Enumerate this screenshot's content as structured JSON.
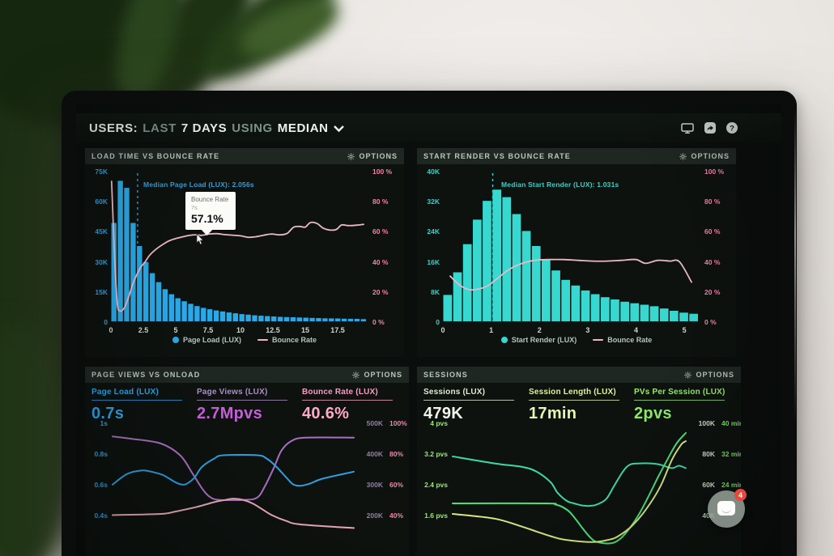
{
  "header": {
    "parts": [
      {
        "text": "USERS:",
        "dim": false
      },
      {
        "text": "LAST",
        "dim": true
      },
      {
        "text": "7 DAYS",
        "dim": false
      },
      {
        "text": "USING",
        "dim": true
      },
      {
        "text": "MEDIAN",
        "dim": false
      }
    ],
    "icons": [
      "display-icon",
      "share-icon",
      "help-icon"
    ]
  },
  "labels": {
    "options": "OPTIONS"
  },
  "chart_data": [
    {
      "type": "bar-line-combo",
      "title": "LOAD TIME VS BOUNCE RATE",
      "x_max": 19.75,
      "x_ticks": [
        "0",
        "2.5",
        "5",
        "7.5",
        "10",
        "12.5",
        "15",
        "17.5"
      ],
      "left_axis": {
        "ticks": [
          "75K",
          "60K",
          "45K",
          "30K",
          "15K",
          "0"
        ],
        "color": "#2f9fdf"
      },
      "right_axis": {
        "ticks": [
          "100 %",
          "80 %",
          "60 %",
          "40 %",
          "20 %",
          "0 %"
        ],
        "color": "#ee85ad"
      },
      "bars": {
        "name": "Page Load (LUX)",
        "color": "#29a9e8",
        "unit": "K",
        "ymax": 75,
        "values": [
          49,
          70,
          66.5,
          49,
          37.5,
          29.5,
          24,
          19.5,
          16,
          13.5,
          11.5,
          10,
          8.7,
          7.6,
          6.7,
          6,
          5.4,
          4.9,
          4.4,
          4,
          3.6,
          3.3,
          3,
          2.8,
          2.6,
          2.4,
          2.2,
          2.1,
          2,
          1.9,
          1.8,
          1.7,
          1.6,
          1.5,
          1.45,
          1.4,
          1.3,
          1.25,
          1.2,
          1.1
        ]
      },
      "line": {
        "name": "Bounce Rate",
        "color": "#eab9c6",
        "points": [
          [
            0.05,
            93
          ],
          [
            0.3,
            40
          ],
          [
            0.5,
            11
          ],
          [
            0.7,
            7
          ],
          [
            0.9,
            7.5
          ],
          [
            1.1,
            10
          ],
          [
            1.4,
            17
          ],
          [
            1.7,
            25
          ],
          [
            2.0,
            31
          ],
          [
            2.3,
            36
          ],
          [
            2.6,
            39
          ],
          [
            3.0,
            44
          ],
          [
            3.5,
            48
          ],
          [
            4.0,
            51
          ],
          [
            4.5,
            53.5
          ],
          [
            5.0,
            55
          ],
          [
            5.5,
            56
          ],
          [
            6.0,
            57
          ],
          [
            6.5,
            57.5
          ],
          [
            7.0,
            57.1
          ],
          [
            7.6,
            58
          ],
          [
            8.2,
            58.2
          ],
          [
            8.8,
            57.6
          ],
          [
            9.4,
            57.2
          ],
          [
            10.0,
            56.8
          ],
          [
            10.6,
            55.8
          ],
          [
            11.2,
            56.2
          ],
          [
            11.8,
            57.2
          ],
          [
            12.4,
            58
          ],
          [
            13.0,
            57.4
          ],
          [
            13.6,
            58.4
          ],
          [
            14.1,
            62.5
          ],
          [
            14.6,
            63
          ],
          [
            15.0,
            62.6
          ],
          [
            15.4,
            65.6
          ],
          [
            15.9,
            65
          ],
          [
            16.4,
            61.8
          ],
          [
            16.9,
            60.6
          ],
          [
            17.4,
            61
          ],
          [
            17.8,
            64
          ],
          [
            18.3,
            63.6
          ],
          [
            18.9,
            63.8
          ],
          [
            19.5,
            64.4
          ]
        ]
      },
      "median": {
        "label": "Median Page Load (LUX): 2.056s",
        "x": 2.056,
        "color": "#2f9fdf"
      },
      "tooltip": {
        "title": "Bounce Rate",
        "sub": "7s",
        "value": "57.1%"
      }
    },
    {
      "type": "bar-line-combo",
      "title": "START RENDER VS BOUNCE RATE",
      "x_max": 5.3,
      "x_ticks": [
        "0",
        "1",
        "2",
        "3",
        "4",
        "5"
      ],
      "left_axis": {
        "ticks": [
          "40K",
          "32K",
          "24K",
          "16K",
          "8K",
          "0"
        ],
        "color": "#35d2ca"
      },
      "right_axis": {
        "ticks": [
          "100 %",
          "80 %",
          "60 %",
          "40 %",
          "20 %",
          "0 %"
        ],
        "color": "#ee85ad"
      },
      "bars": {
        "name": "Start Render (LUX)",
        "color": "#36d8d0",
        "unit": "K",
        "ymax": 40,
        "values": [
          7,
          13,
          20.5,
          27,
          32,
          35,
          33,
          28.5,
          24,
          20,
          16.5,
          13.5,
          11,
          9.5,
          8.2,
          7.2,
          6.4,
          5.8,
          5.2,
          4.8,
          4.4,
          4,
          3.4,
          2.8,
          2.3,
          2
        ]
      },
      "line": {
        "name": "Bounce Rate",
        "color": "#eab9c6",
        "points": [
          [
            0.15,
            30
          ],
          [
            0.35,
            24
          ],
          [
            0.55,
            21
          ],
          [
            0.75,
            21.5
          ],
          [
            0.95,
            24
          ],
          [
            1.15,
            29
          ],
          [
            1.35,
            34
          ],
          [
            1.6,
            38
          ],
          [
            1.9,
            40.5
          ],
          [
            2.2,
            41
          ],
          [
            2.5,
            41
          ],
          [
            2.8,
            40.5
          ],
          [
            3.1,
            40
          ],
          [
            3.4,
            40
          ],
          [
            3.7,
            40.5
          ],
          [
            4.0,
            41
          ],
          [
            4.2,
            38.5
          ],
          [
            4.45,
            40.5
          ],
          [
            4.7,
            40
          ],
          [
            4.9,
            39.5
          ],
          [
            5.15,
            26
          ]
        ]
      },
      "median": {
        "label": "Median Start Render (LUX): 1.031s",
        "x": 1.031,
        "color": "#35d2ca"
      }
    },
    {
      "type": "multi-line",
      "title": "PAGE VIEWS VS ONLOAD",
      "metrics": [
        {
          "label": "Page Load (LUX)",
          "value": "0.7s",
          "color": "#2da3e8"
        },
        {
          "label": "Page Views (LUX)",
          "value": "2.7Mpvs",
          "color": "#a98fc0",
          "value_color": "#c45fd8"
        },
        {
          "label": "Bounce Rate (LUX)",
          "value": "40.6%",
          "color": "#f29ec1",
          "value_color": "#ffa8c9"
        }
      ],
      "left_axis": {
        "ticks": [
          "1s",
          "0.8s",
          "0.6s",
          "0.4s"
        ],
        "color": "#2f9fdf"
      },
      "right_axis": {
        "rows": [
          [
            "500K",
            "100%"
          ],
          [
            "400K",
            "80%"
          ],
          [
            "300K",
            "60%"
          ],
          [
            "200K",
            "40%"
          ]
        ],
        "col1_color": "#92809f",
        "col2_color": "#ee85ad"
      },
      "lines": [
        {
          "color": "#a86fc2",
          "points": [
            [
              0,
              14
            ],
            [
              8,
              16
            ],
            [
              20,
              20
            ],
            [
              28,
              30
            ],
            [
              33,
              45
            ],
            [
              37,
              58
            ],
            [
              40,
              65
            ],
            [
              44,
              68
            ],
            [
              55,
              68
            ],
            [
              60,
              66
            ],
            [
              63,
              57
            ],
            [
              67,
              40
            ],
            [
              70,
              26
            ],
            [
              74,
              18
            ],
            [
              80,
              15
            ],
            [
              100,
              15
            ]
          ]
        },
        {
          "color": "#2f9fdf",
          "points": [
            [
              0,
              55
            ],
            [
              6,
              46
            ],
            [
              12,
              43
            ],
            [
              16,
              44
            ],
            [
              21,
              47
            ],
            [
              26,
              53
            ],
            [
              29,
              55
            ],
            [
              31,
              54
            ],
            [
              34,
              49
            ],
            [
              37,
              40
            ],
            [
              42,
              33
            ],
            [
              46,
              30
            ],
            [
              60,
              30
            ],
            [
              64,
              33
            ],
            [
              68,
              40
            ],
            [
              72,
              49
            ],
            [
              75,
              55
            ],
            [
              78,
              56
            ],
            [
              82,
              54
            ],
            [
              87,
              50
            ],
            [
              100,
              44
            ]
          ]
        },
        {
          "color": "#e8a9b8",
          "points": [
            [
              0,
              81
            ],
            [
              20,
              80
            ],
            [
              26,
              78
            ],
            [
              35,
              74
            ],
            [
              42,
              70
            ],
            [
              47,
              68
            ],
            [
              50,
              67
            ],
            [
              54,
              68
            ],
            [
              58,
              71
            ],
            [
              62,
              76
            ],
            [
              66,
              81
            ],
            [
              72,
              86
            ],
            [
              78,
              89
            ],
            [
              100,
              92
            ]
          ]
        }
      ]
    },
    {
      "type": "multi-line",
      "title": "SESSIONS",
      "metrics": [
        {
          "label": "Sessions (LUX)",
          "value": "479K",
          "color": "#dcead2",
          "value_color": "#f1f8e9"
        },
        {
          "label": "Session Length (LUX)",
          "value": "17min",
          "color": "#dff0a0",
          "value_color": "#e9f6b4"
        },
        {
          "label": "PVs Per Session (LUX)",
          "value": "2pvs",
          "color": "#9be873",
          "value_color": "#8ee86e"
        }
      ],
      "left_axis": {
        "ticks": [
          "4 pvs",
          "3.2 pvs",
          "2.4 pvs",
          "1.6 pvs"
        ],
        "color": "#9be873"
      },
      "right_axis": {
        "rows": [
          [
            "100K",
            "40 min"
          ],
          [
            "80K",
            "32 min"
          ],
          [
            "60K",
            "24 min"
          ],
          [
            "40K",
            ""
          ]
        ],
        "col1_color": "#cfe0c8",
        "col2_color": "#7edc6f"
      },
      "lines": [
        {
          "color": "#3fd9a8",
          "points": [
            [
              0,
              31
            ],
            [
              18,
              37
            ],
            [
              30,
              40
            ],
            [
              36,
              44
            ],
            [
              42,
              53
            ],
            [
              45,
              62
            ],
            [
              49,
              69
            ],
            [
              52,
              71
            ],
            [
              56,
              73
            ],
            [
              60,
              73
            ],
            [
              63,
              71
            ],
            [
              66,
              67
            ],
            [
              69,
              57
            ],
            [
              73,
              44
            ],
            [
              76,
              38
            ],
            [
              80,
              37
            ],
            [
              85,
              37
            ],
            [
              89,
              38
            ],
            [
              94,
              41
            ],
            [
              97,
              39
            ],
            [
              100,
              41
            ]
          ]
        },
        {
          "color": "#4ce07c",
          "points": [
            [
              0,
              71
            ],
            [
              40,
              71
            ],
            [
              44,
              72
            ],
            [
              47,
              74
            ],
            [
              50,
              78
            ],
            [
              53,
              85
            ],
            [
              56,
              93
            ],
            [
              59,
              100
            ],
            [
              62,
              104
            ],
            [
              68,
              105
            ],
            [
              72,
              101
            ],
            [
              76,
              92
            ],
            [
              80,
              80
            ],
            [
              84,
              65
            ],
            [
              88,
              49
            ],
            [
              92,
              34
            ],
            [
              96,
              20
            ],
            [
              100,
              11
            ]
          ]
        },
        {
          "color": "#d6e87e",
          "points": [
            [
              0,
              80
            ],
            [
              18,
              84
            ],
            [
              30,
              91
            ],
            [
              36,
              95
            ],
            [
              42,
              99
            ],
            [
              48,
              102
            ],
            [
              60,
              104
            ],
            [
              67,
              102
            ],
            [
              71,
              99
            ],
            [
              77,
              90
            ],
            [
              83,
              76
            ],
            [
              89,
              57
            ],
            [
              94,
              34
            ],
            [
              98,
              21
            ],
            [
              100,
              18
            ]
          ]
        }
      ]
    }
  ],
  "chat_widget": {
    "badge": "4"
  }
}
